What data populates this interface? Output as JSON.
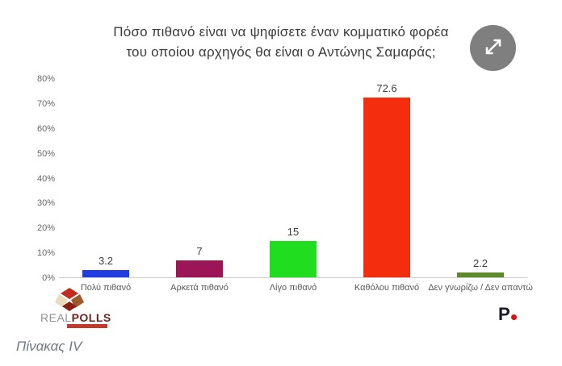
{
  "header": {
    "title_line1": "Πόσο πιθανό είναι να ψηφίσετε έναν κομματικό φορέα",
    "title_line2": "του οποίου αρχηγός θα είναι ο Αντώνης Σαμαράς;"
  },
  "chart_data": {
    "type": "bar",
    "title": "Πόσο πιθανό είναι να ψηφίσετε έναν κομματικό φορέα του οποίου αρχηγός θα είναι ο Αντώνης Σαμαράς;",
    "categories": [
      "Πολύ πιθανό",
      "Αρκετά πιθανό",
      "Λίγο πιθανό",
      "Καθόλου πιθανό",
      "Δεν γνωρίζω / Δεν απαντώ"
    ],
    "values": [
      3.2,
      7,
      15,
      72.6,
      2.2
    ],
    "value_labels": [
      "3.2",
      "7",
      "15",
      "72.6",
      "2.2"
    ],
    "bar_colors": [
      "#1f3de0",
      "#9c1556",
      "#20dd20",
      "#f42d0e",
      "#5c8b2b"
    ],
    "xlabel": "",
    "ylabel": "",
    "ylim": [
      0,
      80
    ],
    "yticks": [
      0,
      10,
      20,
      30,
      40,
      50,
      60,
      70,
      80
    ],
    "ytick_suffix": "%",
    "grid": false,
    "legend_position": "none"
  },
  "footer": {
    "realpolls_logo": {
      "text_real": "REAL",
      "text_polls": "POLLS"
    },
    "protagon_logo": {
      "letter": "P"
    },
    "caption": "Πίνακας IV"
  },
  "colors": {
    "expand_button_bg": "#7f7f7f",
    "baseline": "#cccccc",
    "title_text": "#3b3b3b",
    "realpolls_red": "#c42b1f",
    "realpolls_darkred": "#8a1f16",
    "realpolls_brown": "#9c5a2a",
    "realpolls_cream": "#e9dcbe",
    "protagon_dot": "#dd1111"
  }
}
